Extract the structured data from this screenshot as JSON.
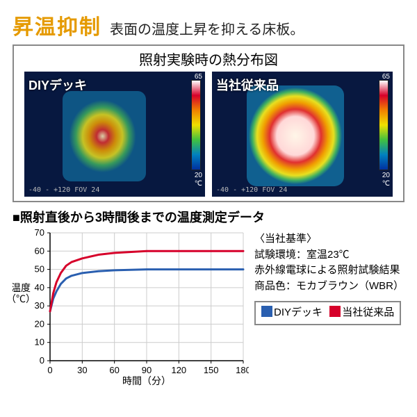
{
  "header": {
    "title": "昇温抑制",
    "title_color": "#e59a00",
    "subtitle": "表面の温度上昇を抑える床板。"
  },
  "thermal": {
    "caption": "照射実験時の熱分布図",
    "panels": [
      {
        "label": "DIYデッキ",
        "hotspot_intensity": 0.55
      },
      {
        "label": "当社従来品",
        "hotspot_intensity": 1.0
      }
    ],
    "colorbar": {
      "max": "65",
      "min": "20",
      "unit": "℃"
    },
    "camera_footer": "-40 - +120  FOV 24"
  },
  "section_label": "■照射直後から3時間後までの温度測定データ",
  "chart": {
    "type": "line",
    "xlabel": "時間（分）",
    "ylabel": "温度\n（℃）",
    "xlim": [
      0,
      180
    ],
    "ylim": [
      0,
      70
    ],
    "xticks": [
      0,
      30,
      60,
      90,
      120,
      150,
      180
    ],
    "yticks": [
      0,
      10,
      20,
      30,
      40,
      50,
      60,
      70
    ],
    "grid_color": "#cccccc",
    "background_color": "#ffffff",
    "line_width": 3,
    "series": [
      {
        "name": "DIYデッキ",
        "color": "#2a5fb0",
        "x": [
          0,
          3,
          6,
          10,
          15,
          20,
          30,
          45,
          60,
          90,
          120,
          150,
          180
        ],
        "y": [
          27,
          34,
          38,
          42,
          45,
          46.5,
          48,
          49,
          49.5,
          50,
          50,
          50,
          50
        ]
      },
      {
        "name": "当社従来品",
        "color": "#d6002a",
        "x": [
          0,
          3,
          6,
          10,
          15,
          20,
          30,
          45,
          60,
          90,
          120,
          150,
          180
        ],
        "y": [
          27,
          37,
          43,
          48,
          52,
          54,
          56,
          58,
          59,
          60,
          60,
          60,
          60
        ]
      }
    ]
  },
  "side": {
    "heading": "〈当社基準〉",
    "lines": [
      "試験環境：室温23℃",
      "赤外線電球による照射試験結果",
      "商品色：モカブラウン（WBR）"
    ]
  },
  "legend": {
    "items": [
      {
        "label": "DIYデッキ",
        "color": "#2a5fb0"
      },
      {
        "label": "当社従来品",
        "color": "#d6002a"
      }
    ]
  }
}
